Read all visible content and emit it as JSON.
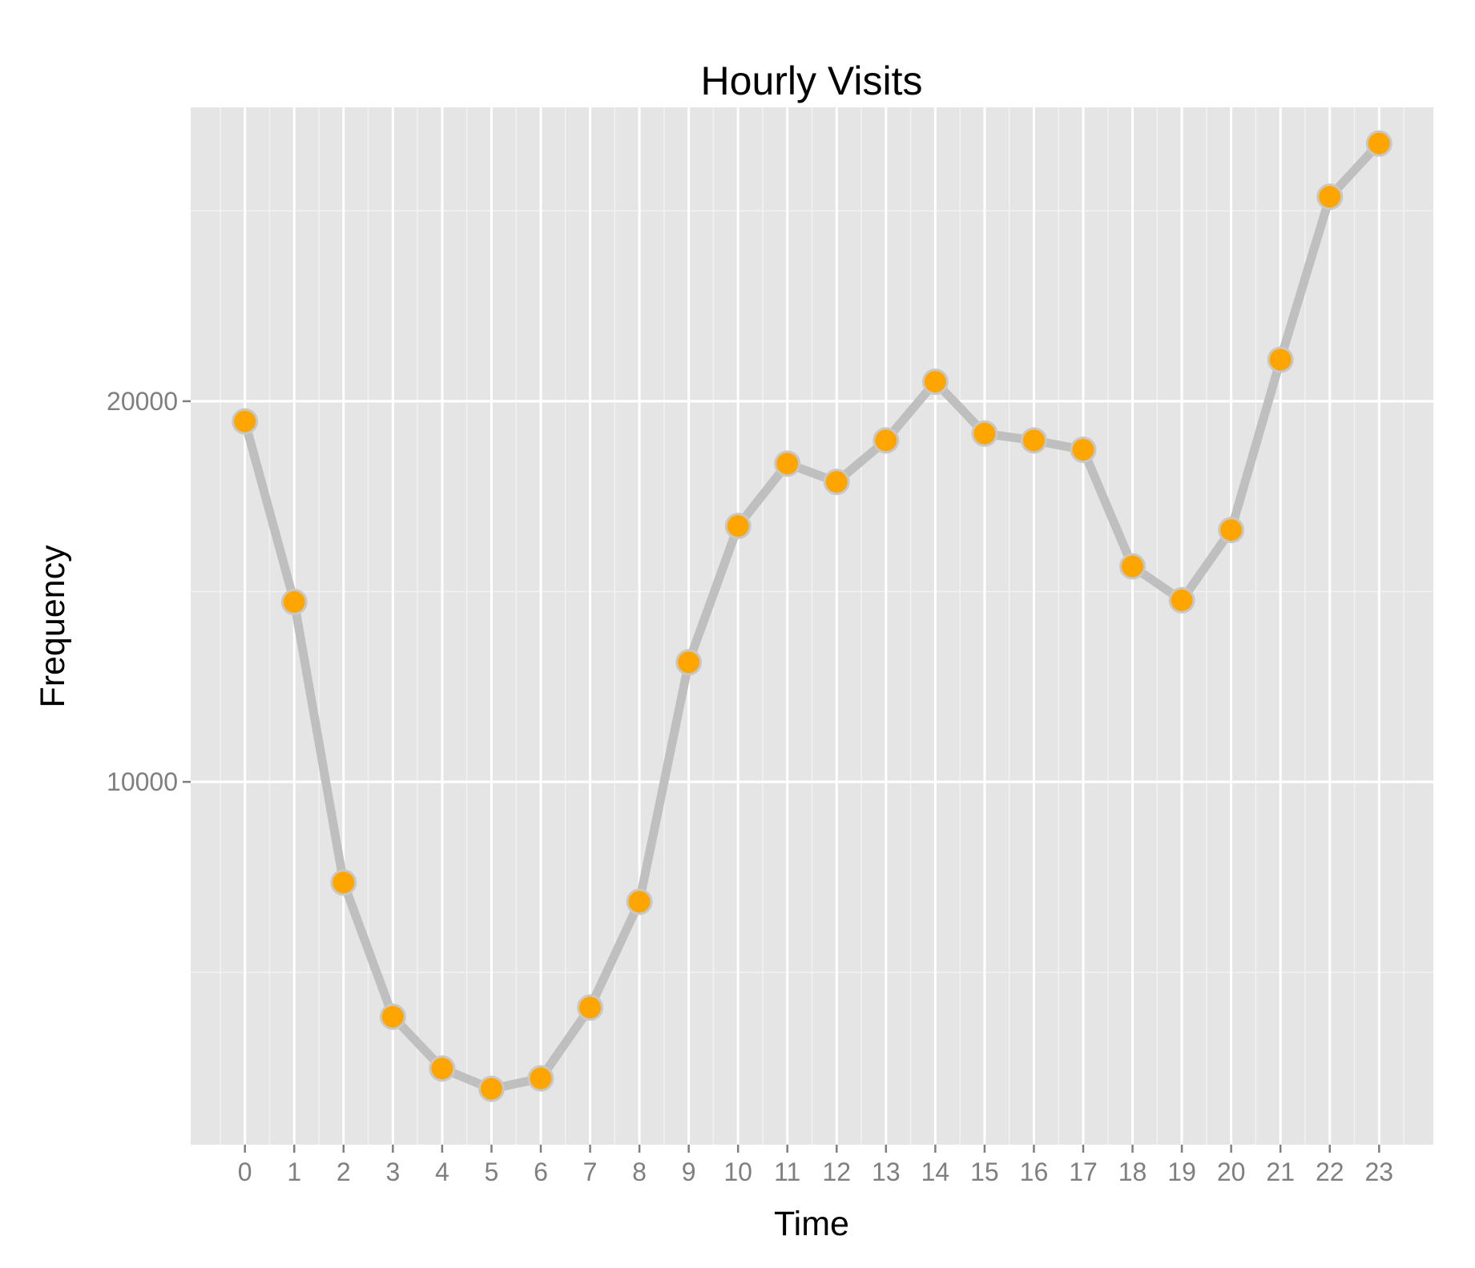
{
  "chart_data": {
    "type": "line",
    "title": "Hourly Visits",
    "xlabel": "Time",
    "ylabel": "Frequency",
    "x": [
      0,
      1,
      2,
      3,
      4,
      5,
      6,
      7,
      8,
      9,
      10,
      11,
      12,
      13,
      14,
      15,
      16,
      17,
      18,
      19,
      20,
      21,
      22,
      23
    ],
    "series": [
      {
        "values": [
          19470,
          14725,
          7355,
          3830,
          2470,
          1935,
          2210,
          4070,
          6850,
          13140,
          16720,
          18360,
          17880,
          18970,
          20510,
          19150,
          18970,
          18725,
          15660,
          14770,
          16615,
          21090,
          25370,
          26770
        ]
      }
    ],
    "xlim": [
      -1.1,
      24.1
    ],
    "ylim": [
      470,
      27720
    ],
    "yticks": [
      10000,
      20000
    ],
    "yticks_minor": [
      5000,
      15000,
      25000
    ],
    "grid": true,
    "legend": "none",
    "colors": {
      "panel": "#e5e5e5",
      "grid_major": "#ffffff",
      "grid_minor": "#f2f2f2",
      "line": "#bfbfbf",
      "point_fill": "#ffa500",
      "point_stroke": "#c8c8c8"
    }
  }
}
